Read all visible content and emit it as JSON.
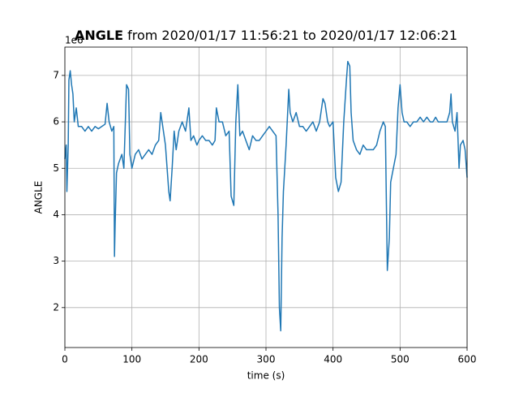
{
  "chart_data": {
    "type": "line",
    "title_variable": "ANGLE",
    "title": "from 2020/01/17 11:56:21 to 2020/01/17 12:06:21",
    "offset_label": "1e6",
    "xlabel": "time (s)",
    "ylabel": "ANGLE",
    "x": [
      0,
      2,
      3,
      5,
      6,
      8,
      10,
      12,
      14,
      17,
      20,
      25,
      30,
      35,
      40,
      45,
      50,
      55,
      60,
      63,
      66,
      70,
      73,
      74,
      75,
      77,
      80,
      85,
      88,
      90,
      92,
      95,
      97,
      100,
      105,
      110,
      115,
      120,
      125,
      130,
      135,
      140,
      143,
      146,
      150,
      155,
      157,
      160,
      163,
      166,
      170,
      175,
      180,
      185,
      188,
      192,
      197,
      200,
      205,
      210,
      215,
      220,
      224,
      226,
      230,
      235,
      240,
      245,
      248,
      252,
      255,
      258,
      261,
      265,
      270,
      275,
      280,
      285,
      290,
      295,
      300,
      305,
      310,
      315,
      318,
      320,
      322,
      324,
      326,
      330,
      334,
      336,
      340,
      345,
      350,
      355,
      360,
      365,
      370,
      375,
      380,
      385,
      388,
      392,
      395,
      400,
      404,
      408,
      412,
      416,
      420,
      422,
      425,
      427,
      430,
      435,
      440,
      445,
      450,
      455,
      460,
      465,
      470,
      475,
      478,
      481,
      484,
      486,
      490,
      494,
      497,
      500,
      503,
      506,
      510,
      515,
      520,
      525,
      530,
      535,
      540,
      545,
      549,
      553,
      557,
      560,
      565,
      570,
      574,
      576,
      578,
      582,
      585,
      588,
      590,
      594,
      597,
      600
    ],
    "series": [
      {
        "name": "ANGLE",
        "color": "#1f77b4",
        "values": [
          5.2,
          5.5,
          4.5,
          5.5,
          6.9,
          7.1,
          6.8,
          6.6,
          6.0,
          6.3,
          5.9,
          5.9,
          5.8,
          5.9,
          5.8,
          5.9,
          5.85,
          5.9,
          5.95,
          6.4,
          6.0,
          5.8,
          5.9,
          3.1,
          3.8,
          4.9,
          5.1,
          5.3,
          5.0,
          5.9,
          6.8,
          6.7,
          5.3,
          5.0,
          5.3,
          5.4,
          5.2,
          5.3,
          5.4,
          5.3,
          5.5,
          5.6,
          6.2,
          5.9,
          5.5,
          4.5,
          4.3,
          5.0,
          5.8,
          5.4,
          5.8,
          6.0,
          5.8,
          6.3,
          5.6,
          5.7,
          5.5,
          5.6,
          5.7,
          5.6,
          5.6,
          5.5,
          5.6,
          6.3,
          6.0,
          6.0,
          5.7,
          5.8,
          4.4,
          4.2,
          6.0,
          6.8,
          5.7,
          5.8,
          5.6,
          5.4,
          5.7,
          5.6,
          5.6,
          5.7,
          5.8,
          5.9,
          5.8,
          5.7,
          4.0,
          2.0,
          1.5,
          3.5,
          4.5,
          5.5,
          6.7,
          6.2,
          6.0,
          6.2,
          5.9,
          5.9,
          5.8,
          5.9,
          6.0,
          5.8,
          6.0,
          6.5,
          6.4,
          6.0,
          5.9,
          6.0,
          4.8,
          4.5,
          4.7,
          6.0,
          6.9,
          7.3,
          7.2,
          6.2,
          5.6,
          5.4,
          5.3,
          5.5,
          5.4,
          5.4,
          5.4,
          5.5,
          5.8,
          6.0,
          5.9,
          2.8,
          3.5,
          4.7,
          5.0,
          5.3,
          6.3,
          6.8,
          6.2,
          6.0,
          6.0,
          5.9,
          6.0,
          6.0,
          6.1,
          6.0,
          6.1,
          6.0,
          6.0,
          6.1,
          6.0,
          6.0,
          6.0,
          6.0,
          6.2,
          6.6,
          6.0,
          5.8,
          6.2,
          5.0,
          5.5,
          5.6,
          5.4,
          4.8
        ]
      }
    ],
    "xlim": [
      0,
      600
    ],
    "xticks": [
      0,
      100,
      200,
      300,
      400,
      500,
      600
    ],
    "ylim": [
      1.14,
      7.61
    ],
    "yticks": [
      2,
      3,
      4,
      5,
      6,
      7
    ],
    "grid": true
  }
}
